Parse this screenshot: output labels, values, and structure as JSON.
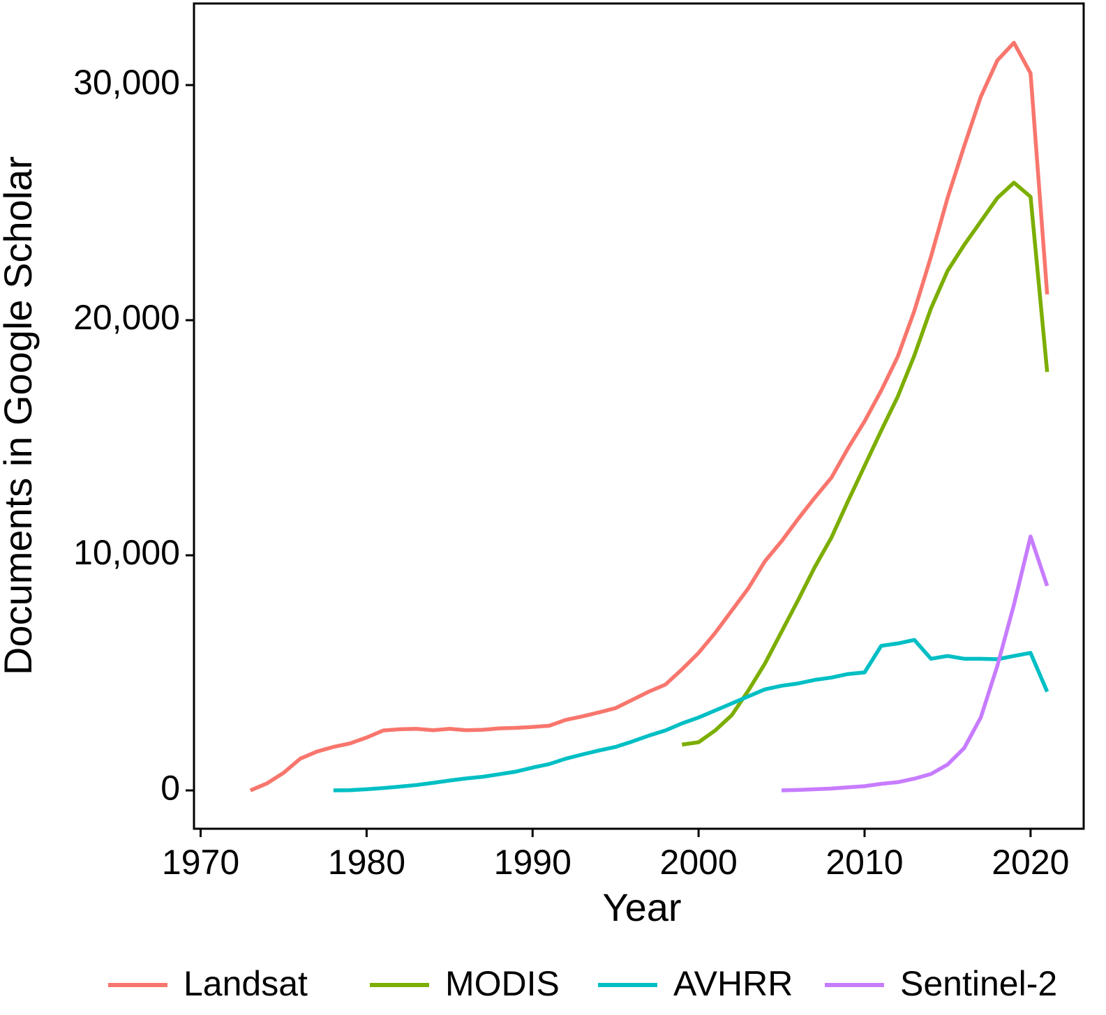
{
  "chart_data": {
    "type": "line",
    "x_label": "Year",
    "y_label": "Documents in Google Scholar",
    "x": [
      1973,
      1974,
      1975,
      1976,
      1977,
      1978,
      1979,
      1980,
      1981,
      1982,
      1983,
      1984,
      1985,
      1986,
      1987,
      1988,
      1989,
      1990,
      1991,
      1992,
      1993,
      1994,
      1995,
      1996,
      1997,
      1998,
      1999,
      2000,
      2001,
      2002,
      2003,
      2004,
      2005,
      2006,
      2007,
      2008,
      2009,
      2010,
      2011,
      2012,
      2013,
      2014,
      2015,
      2016,
      2017,
      2018,
      2019,
      2020,
      2021
    ],
    "series": [
      {
        "name": "Landsat",
        "color": "#F8766D",
        "values": [
          0,
          300,
          750,
          1350,
          1650,
          1850,
          2000,
          2250,
          2550,
          2600,
          2620,
          2560,
          2620,
          2560,
          2580,
          2640,
          2660,
          2700,
          2750,
          3000,
          3150,
          3320,
          3500,
          3850,
          4200,
          4500,
          5150,
          5850,
          6700,
          7650,
          8600,
          9750,
          10600,
          11550,
          12450,
          13300,
          14550,
          15700,
          17000,
          18450,
          20400,
          22700,
          25200,
          27400,
          29500,
          31050,
          31800,
          30500,
          21100
        ]
      },
      {
        "name": "MODIS",
        "color": "#7CAE00",
        "values": [
          null,
          null,
          null,
          null,
          null,
          null,
          null,
          null,
          null,
          null,
          null,
          null,
          null,
          null,
          null,
          null,
          null,
          null,
          null,
          null,
          null,
          null,
          null,
          null,
          null,
          null,
          1950,
          2050,
          2550,
          3200,
          4250,
          5400,
          6750,
          8100,
          9500,
          10750,
          12300,
          13800,
          15300,
          16750,
          18500,
          20500,
          22100,
          23200,
          24200,
          25200,
          25850,
          25250,
          17800
        ]
      },
      {
        "name": "AVHRR",
        "color": "#00BFC4",
        "values": [
          null,
          null,
          null,
          null,
          null,
          0,
          10,
          50,
          100,
          160,
          230,
          320,
          420,
          510,
          580,
          690,
          800,
          970,
          1120,
          1350,
          1530,
          1700,
          1850,
          2080,
          2330,
          2550,
          2850,
          3100,
          3400,
          3700,
          4000,
          4300,
          4450,
          4550,
          4700,
          4800,
          4950,
          5020,
          6150,
          6250,
          6400,
          5600,
          5720,
          5600,
          5600,
          5580,
          5720,
          5850,
          4200
        ]
      },
      {
        "name": "Sentinel-2",
        "color": "#C77CFF",
        "values": [
          null,
          null,
          null,
          null,
          null,
          null,
          null,
          null,
          null,
          null,
          null,
          null,
          null,
          null,
          null,
          null,
          null,
          null,
          null,
          null,
          null,
          null,
          null,
          null,
          null,
          null,
          null,
          null,
          null,
          null,
          null,
          null,
          0,
          20,
          50,
          80,
          130,
          180,
          280,
          350,
          500,
          700,
          1100,
          1800,
          3100,
          5300,
          7900,
          10800,
          8700
        ]
      }
    ],
    "xlim": [
      1969.6,
      2023.2
    ],
    "ylim": [
      -1630,
      33470
    ],
    "xticks": [
      1970,
      1980,
      1990,
      2000,
      2010,
      2020
    ],
    "yticks": [
      0,
      {
        "value": 10000,
        "label": "10,000"
      },
      {
        "value": 20000,
        "label": "20,000"
      },
      {
        "value": 30000,
        "label": "30,000"
      }
    ],
    "legend": "bottom"
  }
}
